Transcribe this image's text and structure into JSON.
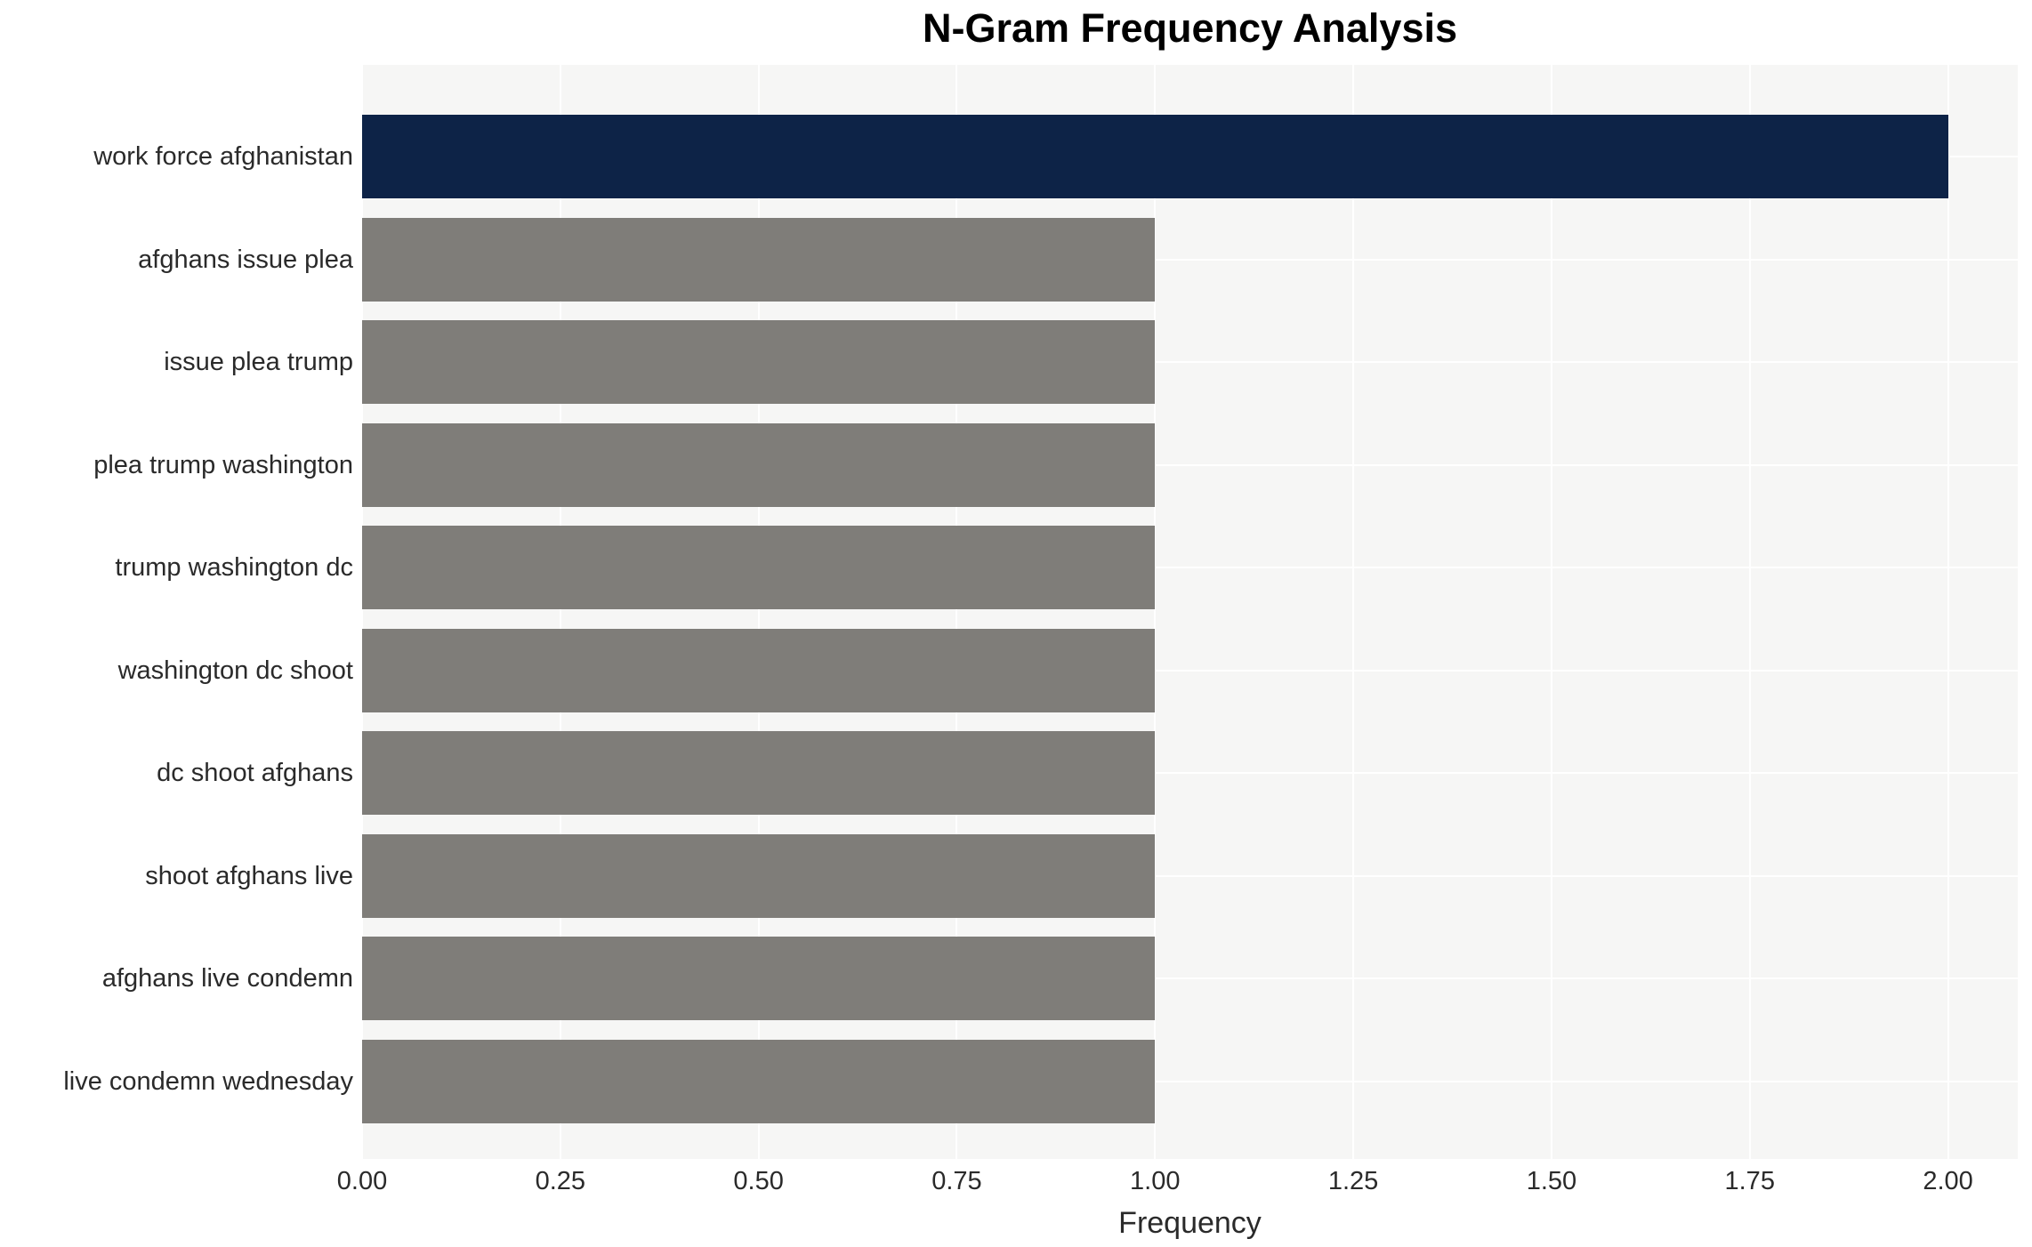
{
  "chart_data": {
    "type": "bar",
    "orientation": "horizontal",
    "title": "N-Gram Frequency Analysis",
    "xlabel": "Frequency",
    "ylabel": "",
    "categories": [
      "work force afghanistan",
      "afghans issue plea",
      "issue plea trump",
      "plea trump washington",
      "trump washington dc",
      "washington dc shoot",
      "dc shoot afghans",
      "shoot afghans live",
      "afghans live condemn",
      "live condemn wednesday"
    ],
    "values": [
      2,
      1,
      1,
      1,
      1,
      1,
      1,
      1,
      1,
      1
    ],
    "bar_colors": [
      "#0d2347",
      "#7f7d79",
      "#7f7d79",
      "#7f7d79",
      "#7f7d79",
      "#7f7d79",
      "#7f7d79",
      "#7f7d79",
      "#7f7d79",
      "#7f7d79"
    ],
    "xlim": [
      0,
      2.088
    ],
    "xticks": [
      0,
      0.25,
      0.5,
      0.75,
      1.0,
      1.25,
      1.5,
      1.75,
      2.0
    ],
    "xtick_labels": [
      "0.00",
      "0.25",
      "0.50",
      "0.75",
      "1.00",
      "1.25",
      "1.50",
      "1.75",
      "2.00"
    ],
    "grid": true,
    "legend": false,
    "colors": {
      "highlight_bar": "#0d2347",
      "default_bar": "#7f7d79",
      "plot_background": "#f6f6f5",
      "grid_line": "#ffffff",
      "axis_text": "#2a2a2a",
      "title_text": "#000000",
      "figure_background": "#ffffff"
    }
  }
}
